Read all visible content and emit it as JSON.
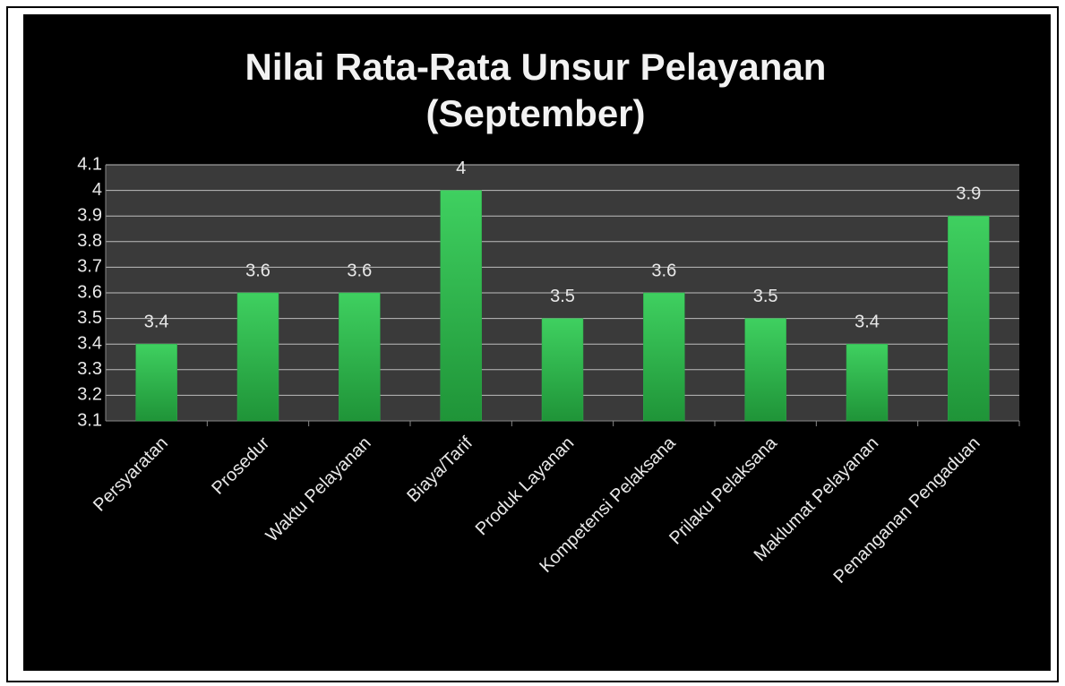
{
  "chart_data": {
    "type": "bar",
    "title": [
      "Nilai Rata-Rata Unsur Pelayanan",
      "(September)"
    ],
    "categories": [
      "Persyaratan",
      "Prosedur",
      "Waktu Pelayanan",
      "Biaya/Tarif",
      "Produk Layanan",
      "Kompetensi Pelaksana",
      "Prilaku Pelaksana",
      "Maklumat Pelayanan",
      "Penanganan Pengaduan"
    ],
    "values": [
      3.4,
      3.6,
      3.6,
      4,
      3.5,
      3.6,
      3.5,
      3.4,
      3.9
    ],
    "color": "#2ea84a",
    "ylim": [
      3.1,
      4.1
    ],
    "yticks": [
      3.1,
      3.2,
      3.3,
      3.4,
      3.5,
      3.6,
      3.7,
      3.8,
      3.9,
      4,
      4.1
    ],
    "grid": true
  }
}
